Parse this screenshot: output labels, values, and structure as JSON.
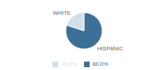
{
  "chart_data": {
    "type": "pie",
    "categories": [
      "HISPANIC",
      "WHITE"
    ],
    "values": [
      80.0,
      20.0
    ],
    "value_labels": [
      "80.0%",
      "20.0%"
    ],
    "colors": [
      "#3d7096",
      "#cfe0ea"
    ],
    "legend": "bottom"
  }
}
